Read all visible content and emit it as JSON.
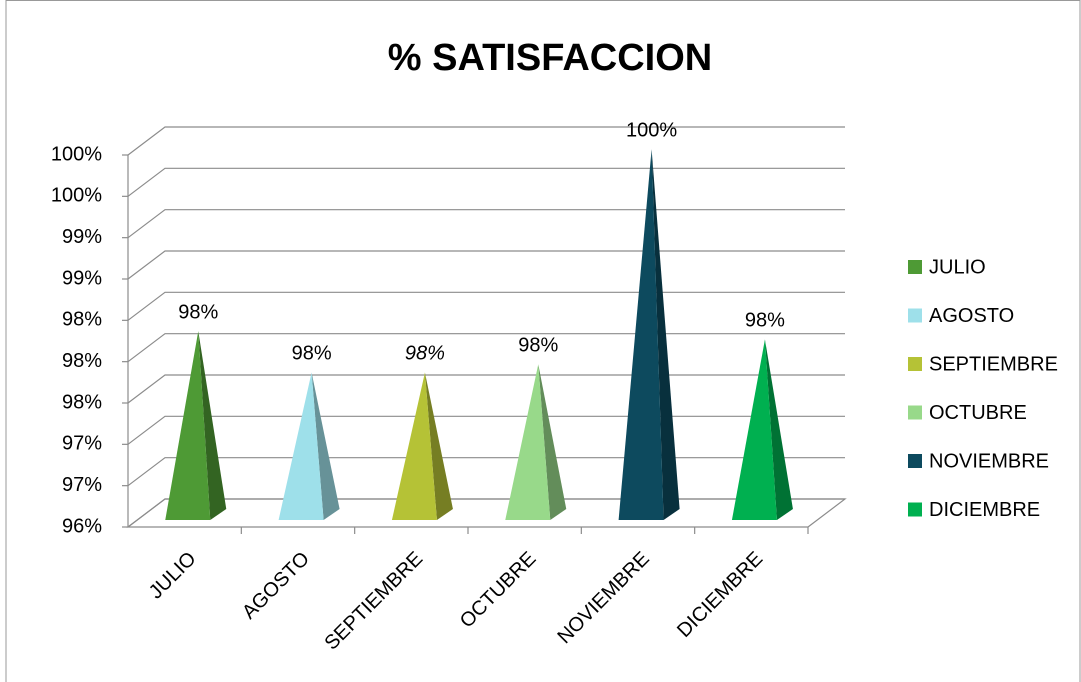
{
  "chart_data": {
    "type": "pyramid3d",
    "title": "%  SATISFACCION",
    "categories": [
      "JULIO",
      "AGOSTO",
      "SEPTIEMBRE",
      "OCTUBRE",
      "NOVIEMBRE",
      "DICIEMBRE"
    ],
    "values": [
      98.2,
      97.7,
      97.7,
      97.8,
      100.4,
      98.1
    ],
    "value_labels": [
      "98%",
      "98%",
      "98%",
      "98%",
      "100%",
      "98%"
    ],
    "colors": [
      "#4e9a35",
      "#9ee0ea",
      "#b5c236",
      "#98d98a",
      "#0d4a5e",
      "#00b050"
    ],
    "ylim": [
      96,
      100.5
    ],
    "yticks": [
      {
        "value": 96,
        "label": "96%"
      },
      {
        "value": 96.5,
        "label": "97%"
      },
      {
        "value": 97,
        "label": "97%"
      },
      {
        "value": 97.5,
        "label": "98%"
      },
      {
        "value": 98,
        "label": "98%"
      },
      {
        "value": 98.5,
        "label": "98%"
      },
      {
        "value": 99,
        "label": "99%"
      },
      {
        "value": 99.5,
        "label": "99%"
      },
      {
        "value": 100,
        "label": "100%"
      },
      {
        "value": 100.5,
        "label": "100%"
      }
    ],
    "grid": true,
    "legend": "right"
  }
}
